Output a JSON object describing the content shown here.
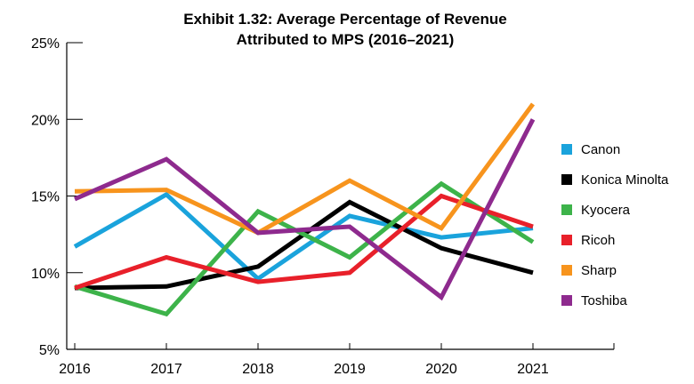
{
  "chart_data": {
    "type": "line",
    "title": "Exhibit 1.32: Average Percentage of Revenue",
    "subtitle": "Attributed to MPS (2016–2021)",
    "xlabel": "",
    "ylabel": "",
    "x": [
      "2016",
      "2017",
      "2018",
      "2019",
      "2020",
      "2021"
    ],
    "ylim": [
      5,
      25
    ],
    "yticks": [
      "5%",
      "10%",
      "15%",
      "20%",
      "25%"
    ],
    "ytick_values": [
      5,
      10,
      15,
      20,
      25
    ],
    "grid": false,
    "legend_position": "right",
    "series": [
      {
        "name": "Canon",
        "color": "#1aa3dc",
        "values": [
          11.7,
          15.1,
          9.6,
          13.7,
          12.3,
          12.9
        ]
      },
      {
        "name": "Konica Minolta",
        "color": "#000000",
        "values": [
          9.0,
          9.1,
          10.4,
          14.6,
          11.6,
          10.0
        ]
      },
      {
        "name": "Kyocera",
        "color": "#3db34a",
        "values": [
          9.1,
          7.3,
          14.0,
          11.0,
          15.8,
          12.0
        ]
      },
      {
        "name": "Ricoh",
        "color": "#e8202a",
        "values": [
          9.0,
          11.0,
          9.4,
          10.0,
          15.0,
          13.0
        ]
      },
      {
        "name": "Sharp",
        "color": "#f7941d",
        "values": [
          15.3,
          15.4,
          12.6,
          16.0,
          12.9,
          21.0
        ]
      },
      {
        "name": "Toshiba",
        "color": "#8e2a8e",
        "values": [
          14.8,
          17.4,
          12.6,
          13.0,
          8.4,
          20.0
        ]
      }
    ]
  }
}
